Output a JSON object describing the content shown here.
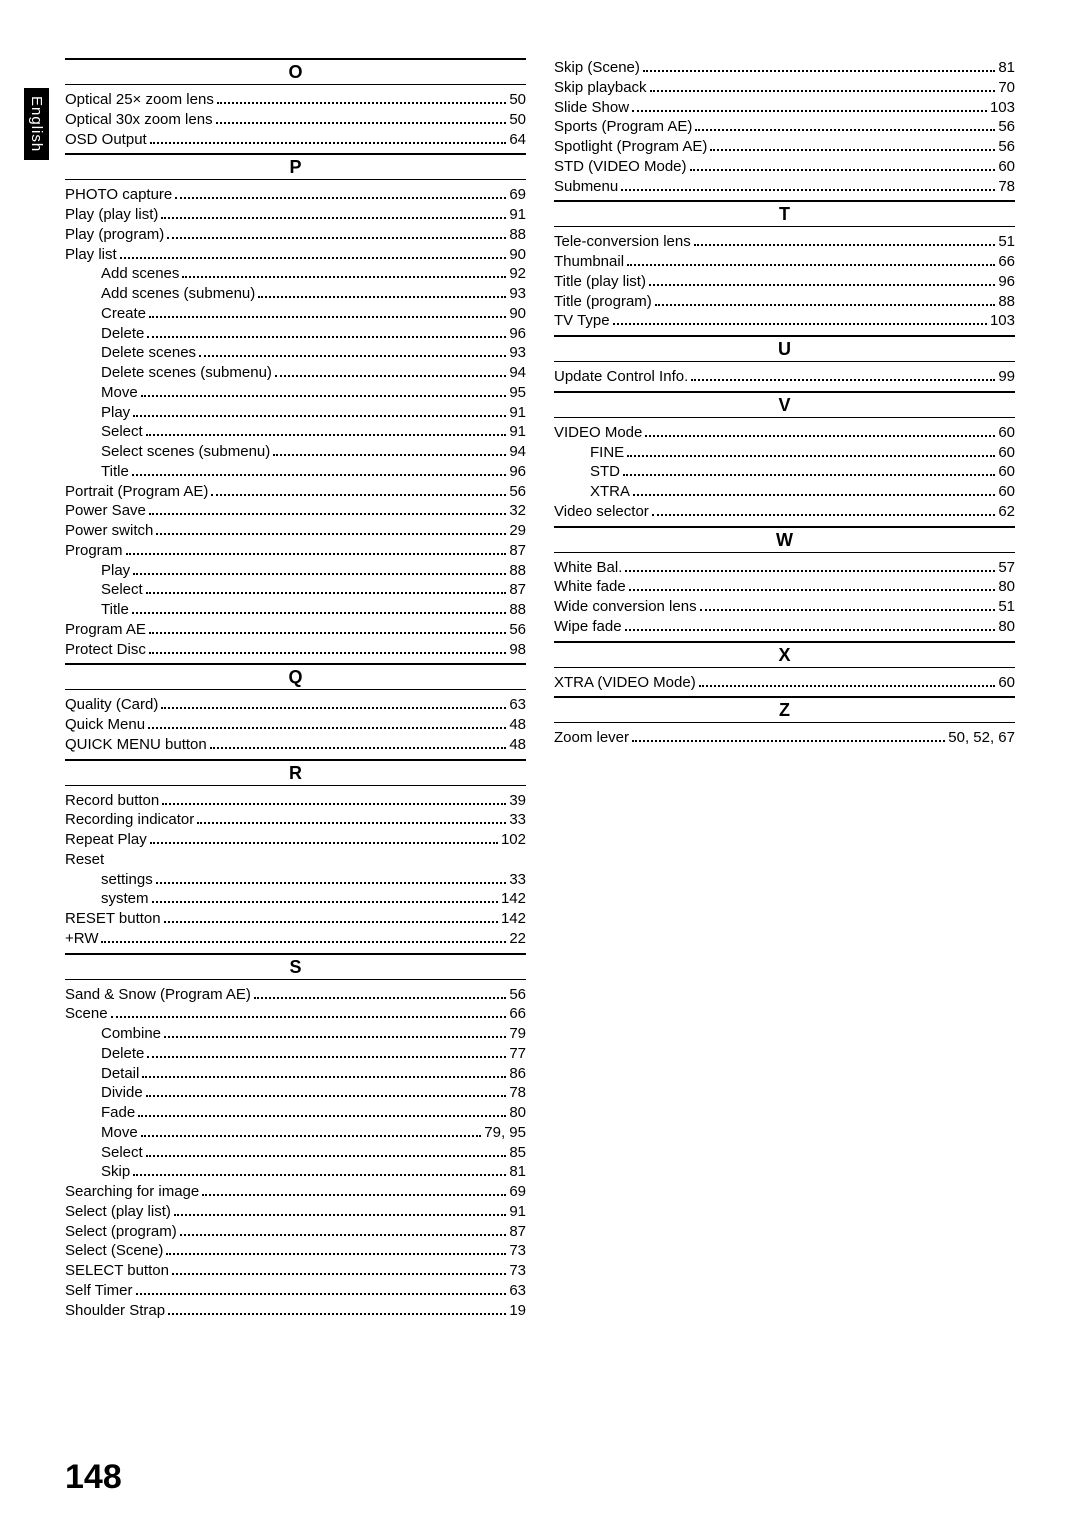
{
  "sideTab": "English",
  "pageNumber": "148",
  "leftColumn": [
    {
      "letter": "O",
      "first": true,
      "entries": [
        {
          "label": "Optical 25× zoom lens",
          "page": "50"
        },
        {
          "label": "Optical 30x zoom lens",
          "page": "50"
        },
        {
          "label": "OSD Output",
          "page": "64"
        }
      ]
    },
    {
      "letter": "P",
      "entries": [
        {
          "label": "PHOTO capture",
          "page": "69"
        },
        {
          "label": "Play (play list)",
          "page": "91"
        },
        {
          "label": "Play (program)",
          "page": "88"
        },
        {
          "label": "Play list",
          "page": "90"
        },
        {
          "label": "Add scenes",
          "page": "92",
          "indent": 1
        },
        {
          "label": "Add scenes (submenu)",
          "page": "93",
          "indent": 1
        },
        {
          "label": "Create",
          "page": "90",
          "indent": 1
        },
        {
          "label": "Delete",
          "page": "96",
          "indent": 1
        },
        {
          "label": "Delete scenes",
          "page": "93",
          "indent": 1
        },
        {
          "label": "Delete scenes (submenu)",
          "page": "94",
          "indent": 1
        },
        {
          "label": "Move",
          "page": "95",
          "indent": 1
        },
        {
          "label": "Play",
          "page": "91",
          "indent": 1
        },
        {
          "label": "Select",
          "page": "91",
          "indent": 1
        },
        {
          "label": "Select scenes (submenu)",
          "page": "94",
          "indent": 1
        },
        {
          "label": "Title",
          "page": "96",
          "indent": 1
        },
        {
          "label": "Portrait (Program AE)",
          "page": "56"
        },
        {
          "label": "Power Save",
          "page": "32"
        },
        {
          "label": "Power switch",
          "page": "29"
        },
        {
          "label": "Program",
          "page": "87"
        },
        {
          "label": "Play",
          "page": "88",
          "indent": 1
        },
        {
          "label": "Select",
          "page": "87",
          "indent": 1
        },
        {
          "label": "Title",
          "page": "88",
          "indent": 1
        },
        {
          "label": "Program AE",
          "page": "56"
        },
        {
          "label": "Protect Disc",
          "page": "98"
        }
      ]
    },
    {
      "letter": "Q",
      "entries": [
        {
          "label": "Quality (Card)",
          "page": "63"
        },
        {
          "label": "Quick Menu",
          "page": "48"
        },
        {
          "label": "QUICK MENU button",
          "page": "48"
        }
      ]
    },
    {
      "letter": "R",
      "entries": [
        {
          "label": "Record button",
          "page": "39"
        },
        {
          "label": "Recording indicator",
          "page": "33"
        },
        {
          "label": "Repeat Play",
          "page": "102"
        },
        {
          "label": "Reset",
          "nopage": true
        },
        {
          "label": "settings",
          "page": "33",
          "indent": 1
        },
        {
          "label": "system",
          "page": "142",
          "indent": 1
        },
        {
          "label": "RESET button",
          "page": "142"
        },
        {
          "label": "+RW",
          "page": "22"
        }
      ]
    },
    {
      "letter": "S",
      "entries": [
        {
          "label": "Sand & Snow (Program AE)",
          "page": "56"
        },
        {
          "label": "Scene",
          "page": "66"
        },
        {
          "label": "Combine",
          "page": "79",
          "indent": 1
        },
        {
          "label": "Delete",
          "page": "77",
          "indent": 1
        },
        {
          "label": "Detail",
          "page": "86",
          "indent": 1
        },
        {
          "label": "Divide",
          "page": "78",
          "indent": 1
        },
        {
          "label": "Fade",
          "page": "80",
          "indent": 1
        },
        {
          "label": "Move",
          "page": "79, 95",
          "indent": 1
        },
        {
          "label": "Select",
          "page": "85",
          "indent": 1
        },
        {
          "label": "Skip",
          "page": "81",
          "indent": 1
        },
        {
          "label": "Searching for image",
          "page": "69"
        },
        {
          "label": "Select (play list)",
          "page": "91"
        },
        {
          "label": "Select (program)",
          "page": "87"
        },
        {
          "label": "Select (Scene)",
          "page": "73"
        },
        {
          "label": "SELECT button",
          "page": "73"
        },
        {
          "label": "Self Timer",
          "page": "63"
        },
        {
          "label": "Shoulder Strap",
          "page": "19"
        }
      ]
    }
  ],
  "rightColumn": [
    {
      "noheader": true,
      "entries": [
        {
          "label": "Skip (Scene)",
          "page": "81"
        },
        {
          "label": "Skip playback",
          "page": "70"
        },
        {
          "label": "Slide Show",
          "page": "103"
        },
        {
          "label": "Sports (Program AE)",
          "page": "56"
        },
        {
          "label": "Spotlight (Program AE)",
          "page": "56"
        },
        {
          "label": "STD (VIDEO Mode)",
          "page": "60"
        },
        {
          "label": "Submenu",
          "page": "78"
        }
      ]
    },
    {
      "letter": "T",
      "entries": [
        {
          "label": "Tele-conversion lens",
          "page": "51"
        },
        {
          "label": "Thumbnail",
          "page": "66"
        },
        {
          "label": "Title (play list)",
          "page": "96"
        },
        {
          "label": "Title (program)",
          "page": "88"
        },
        {
          "label": "TV Type",
          "page": "103"
        }
      ]
    },
    {
      "letter": "U",
      "entries": [
        {
          "label": "Update Control Info.",
          "page": "99"
        }
      ]
    },
    {
      "letter": "V",
      "entries": [
        {
          "label": "VIDEO Mode",
          "page": "60"
        },
        {
          "label": "FINE",
          "page": "60",
          "indent": 1
        },
        {
          "label": "STD",
          "page": "60",
          "indent": 1
        },
        {
          "label": "XTRA",
          "page": "60",
          "indent": 1
        },
        {
          "label": "Video selector",
          "page": "62"
        }
      ]
    },
    {
      "letter": "W",
      "entries": [
        {
          "label": "White Bal.",
          "page": "57"
        },
        {
          "label": "White fade",
          "page": "80"
        },
        {
          "label": "Wide conversion lens",
          "page": "51"
        },
        {
          "label": "Wipe fade",
          "page": "80"
        }
      ]
    },
    {
      "letter": "X",
      "entries": [
        {
          "label": "XTRA (VIDEO Mode)",
          "page": "60"
        }
      ]
    },
    {
      "letter": "Z",
      "entries": [
        {
          "label": "Zoom lever",
          "page": "50, 52, 67"
        }
      ]
    }
  ]
}
